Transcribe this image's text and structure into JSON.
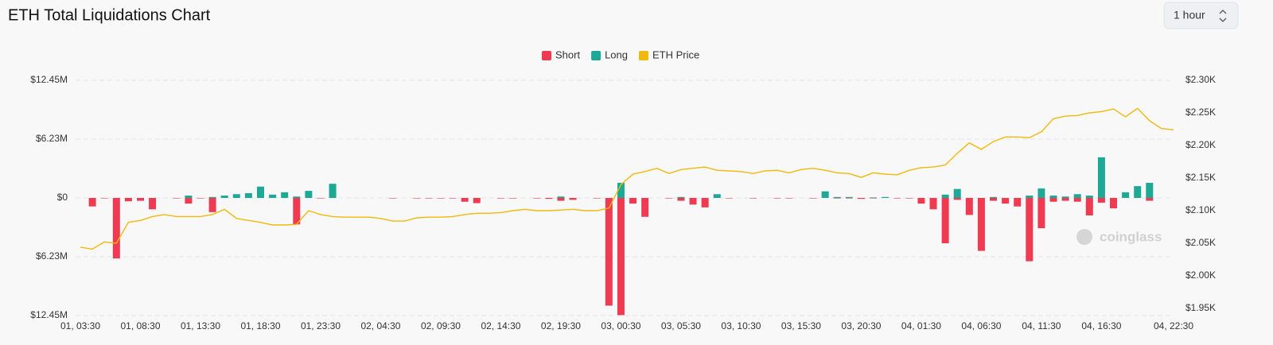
{
  "interval": "1 hour",
  "watermark": "coinglass",
  "chart_data": {
    "type": "bar-line",
    "title": "ETH Total Liquidations Chart",
    "categories": [
      "01, 03:30",
      null,
      null,
      null,
      null,
      "01, 08:30",
      null,
      null,
      null,
      null,
      "01, 13:30",
      null,
      null,
      null,
      null,
      "01, 18:30",
      null,
      null,
      null,
      null,
      "01, 23:30",
      null,
      null,
      null,
      null,
      "02, 04:30",
      null,
      null,
      null,
      null,
      "02, 09:30",
      null,
      null,
      null,
      null,
      "02, 14:30",
      null,
      null,
      null,
      null,
      "02, 19:30",
      null,
      null,
      null,
      null,
      "03, 00:30",
      null,
      null,
      null,
      null,
      "03, 05:30",
      null,
      null,
      null,
      null,
      "03, 10:30",
      null,
      null,
      null,
      null,
      "03, 15:30",
      null,
      null,
      null,
      null,
      "03, 20:30",
      null,
      null,
      null,
      null,
      "04, 01:30",
      null,
      null,
      null,
      null,
      "04, 06:30",
      null,
      null,
      null,
      null,
      "04, 11:30",
      null,
      null,
      null,
      null,
      "04, 16:30",
      null,
      null,
      null,
      null,
      null,
      "04, 22:30"
    ],
    "series": [
      {
        "name": "Short",
        "color": "#ef3a52",
        "values": [
          0,
          -0.9,
          -0.05,
          -6.4,
          -0.35,
          -0.3,
          -1.2,
          0,
          -0.05,
          -0.6,
          -0.05,
          -1.5,
          0,
          0,
          0,
          0,
          0,
          0,
          -2.8,
          0,
          -0.05,
          0,
          0,
          0,
          0,
          0,
          -0.05,
          0,
          -0.05,
          -0.05,
          -0.05,
          -0.05,
          -0.4,
          -0.55,
          0,
          -0.05,
          -0.05,
          0,
          -0.05,
          -0.1,
          -0.3,
          -0.2,
          0,
          -0.05,
          -11.4,
          -12.4,
          -0.6,
          -2.0,
          0,
          -0.05,
          -0.3,
          -0.7,
          -1.0,
          0,
          -0.05,
          0,
          -0.05,
          0,
          -0.05,
          -0.05,
          0,
          -0.05,
          0,
          -0.05,
          -0.05,
          -0.1,
          -0.05,
          0,
          -0.05,
          -0.05,
          -0.6,
          -1.2,
          -4.8,
          -0.2,
          -1.8,
          -5.6,
          -0.3,
          -0.6,
          -0.9,
          -6.7,
          -3.2,
          -0.4,
          -0.3,
          -0.4,
          -1.85,
          -0.5,
          -1.1,
          0,
          0,
          -0.3,
          0,
          0
        ]
      },
      {
        "name": "Long",
        "color": "#1ea896",
        "values": [
          0,
          0,
          0,
          0,
          0,
          0,
          0,
          0,
          0,
          0.25,
          0,
          0.1,
          0.25,
          0.4,
          0.5,
          1.2,
          0.35,
          0.6,
          0.15,
          0.75,
          0,
          1.5,
          0,
          0,
          0,
          0,
          0,
          0,
          0,
          0,
          0,
          0,
          0,
          0,
          0,
          0,
          0,
          0,
          0,
          0,
          0.15,
          0,
          0,
          0,
          0,
          1.6,
          0,
          0,
          0,
          0,
          0.1,
          0,
          0,
          0.4,
          0,
          0,
          0,
          0,
          0,
          0,
          0,
          0,
          0.7,
          0.1,
          0.1,
          0,
          0.05,
          0.1,
          0,
          0,
          0,
          0,
          0.35,
          0.95,
          0,
          0,
          0.1,
          0,
          0,
          0.25,
          1.0,
          0.25,
          0.15,
          0.4,
          0.25,
          4.3,
          0,
          0.6,
          1.25,
          1.6,
          0,
          0
        ]
      },
      {
        "name": "ETH Price",
        "color": "#f0b90b",
        "axis": "y2",
        "values": [
          2.044,
          2.041,
          2.052,
          2.05,
          2.082,
          2.085,
          2.091,
          2.094,
          2.091,
          2.091,
          2.091,
          2.094,
          2.102,
          2.088,
          2.085,
          2.082,
          2.078,
          2.078,
          2.079,
          2.1,
          2.094,
          2.091,
          2.09,
          2.09,
          2.09,
          2.088,
          2.084,
          2.084,
          2.089,
          2.09,
          2.09,
          2.091,
          2.094,
          2.096,
          2.096,
          2.097,
          2.1,
          2.102,
          2.1,
          2.1,
          2.101,
          2.102,
          2.1,
          2.1,
          2.104,
          2.14,
          2.156,
          2.16,
          2.165,
          2.157,
          2.163,
          2.165,
          2.167,
          2.162,
          2.161,
          2.16,
          2.157,
          2.161,
          2.162,
          2.158,
          2.163,
          2.165,
          2.162,
          2.158,
          2.157,
          2.151,
          2.158,
          2.156,
          2.155,
          2.162,
          2.166,
          2.167,
          2.17,
          2.188,
          2.204,
          2.194,
          2.206,
          2.213,
          2.213,
          2.212,
          2.221,
          2.241,
          2.245,
          2.246,
          2.25,
          2.252,
          2.256,
          2.244,
          2.257,
          2.238,
          2.226,
          2.224
        ]
      }
    ],
    "ylim": [
      -12.45,
      12.45
    ],
    "yticks": [
      {
        "value": 12.45,
        "label": "$12.45M"
      },
      {
        "value": 6.23,
        "label": "$6.23M"
      },
      {
        "value": 0,
        "label": "$0"
      },
      {
        "value": -6.23,
        "label": "$6.23M"
      },
      {
        "value": -12.45,
        "label": "$12.45M"
      }
    ],
    "y2lim": [
      1.939,
      2.3
    ],
    "y2ticks": [
      {
        "value": 2.3,
        "label": "$2.30K"
      },
      {
        "value": 2.25,
        "label": "$2.25K"
      },
      {
        "value": 2.2,
        "label": "$2.20K"
      },
      {
        "value": 2.15,
        "label": "$2.15K"
      },
      {
        "value": 2.1,
        "label": "$2.10K"
      },
      {
        "value": 2.05,
        "label": "$2.05K"
      },
      {
        "value": 2.0,
        "label": "$2.00K"
      },
      {
        "value": 1.95,
        "label": "$1.95K"
      }
    ],
    "grid": true
  }
}
